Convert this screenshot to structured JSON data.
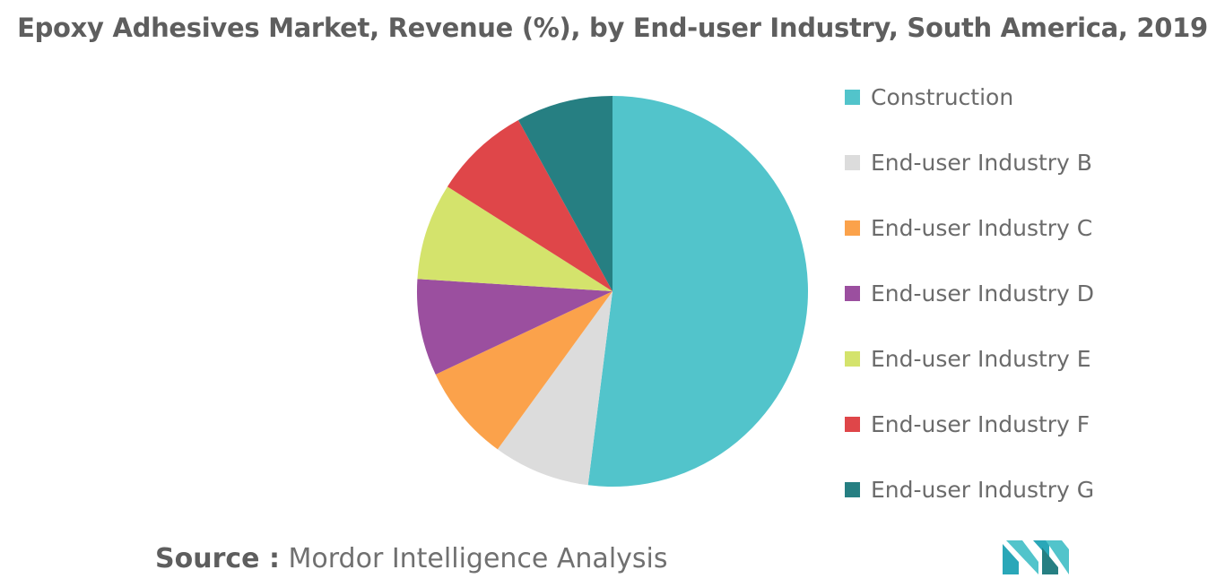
{
  "header": {
    "title": "Epoxy Adhesives Market, Revenue (%), by End-user Industry, South America, 2019"
  },
  "chart_data": {
    "type": "pie",
    "title": "Epoxy Adhesives Market, Revenue (%), by End-user Industry, South America, 2019",
    "slices": [
      {
        "label": "Construction",
        "value": 52,
        "color": "#52c4cb"
      },
      {
        "label": "End-user Industry B",
        "value": 8,
        "color": "#dcdcdc"
      },
      {
        "label": "End-user Industry C",
        "value": 8,
        "color": "#fba24b"
      },
      {
        "label": "End-user Industry D",
        "value": 8,
        "color": "#9b4f9f"
      },
      {
        "label": "End-user Industry E",
        "value": 8,
        "color": "#d4e36c"
      },
      {
        "label": "End-user Industry F",
        "value": 8,
        "color": "#df4649"
      },
      {
        "label": "End-user Industry G",
        "value": 8,
        "color": "#267f82"
      }
    ],
    "legend_position": "right"
  },
  "footer": {
    "source_label": "Source :",
    "source_text": "Mordor Intelligence Analysis",
    "logo_icon": "mordor-intelligence-logo-icon"
  }
}
